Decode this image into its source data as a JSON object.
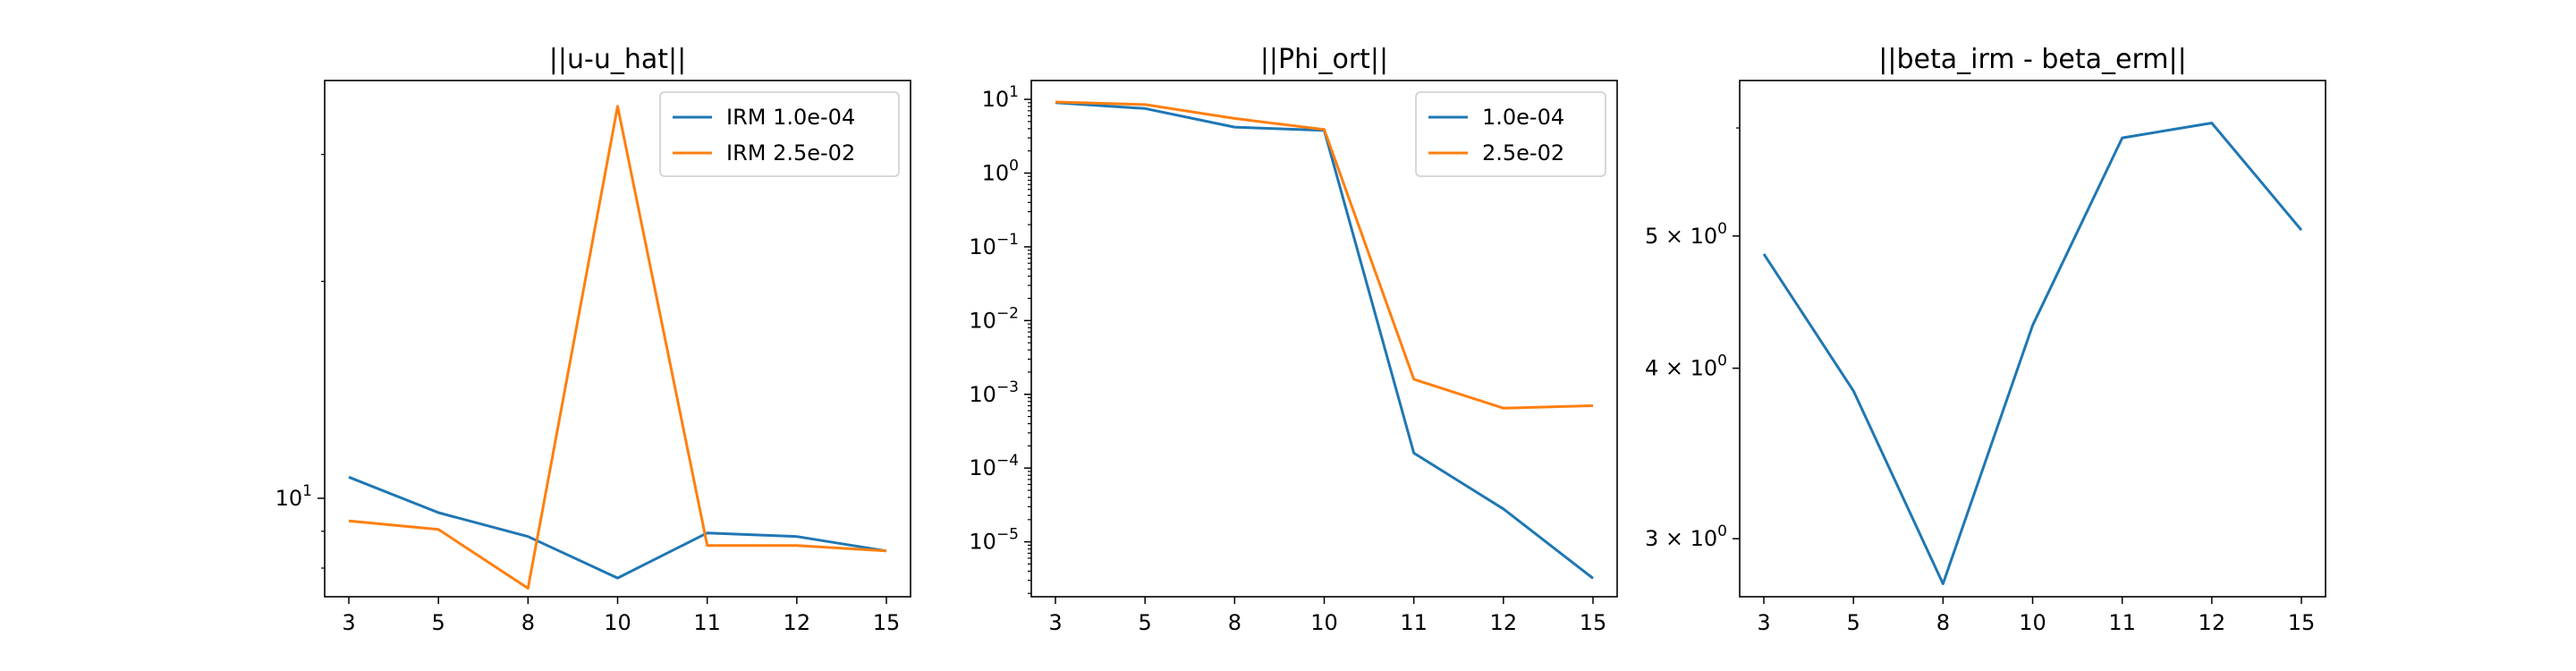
{
  "chart_data": [
    {
      "type": "line",
      "title": "||u-u_hat||",
      "xlabel": "",
      "ylabel": "",
      "categories": [
        "3",
        "5",
        "8",
        "10",
        "11",
        "12",
        "15"
      ],
      "yscale": "log",
      "ylim": [
        7.3,
        38
      ],
      "yticks": [
        {
          "value": 10,
          "base": "10",
          "exp": "1"
        }
      ],
      "legend_position": "upper right",
      "series": [
        {
          "name": "IRM 1.0e-04",
          "color": "#1f77b4",
          "values": [
            10.7,
            9.55,
            8.85,
            7.75,
            8.95,
            8.85,
            8.45
          ]
        },
        {
          "name": "IRM 2.5e-02",
          "color": "#ff7f0e",
          "values": [
            9.3,
            9.05,
            7.5,
            35.0,
            8.6,
            8.6,
            8.45
          ]
        }
      ]
    },
    {
      "type": "line",
      "title": "||Phi_ort||",
      "xlabel": "",
      "ylabel": "",
      "categories": [
        "3",
        "5",
        "8",
        "10",
        "11",
        "12",
        "15"
      ],
      "yscale": "log",
      "ylim": [
        1.8e-06,
        18
      ],
      "yticks": [
        {
          "value": 10,
          "base": "10",
          "exp": "1"
        },
        {
          "value": 1,
          "base": "10",
          "exp": "0"
        },
        {
          "value": 0.1,
          "base": "10",
          "exp": "−1"
        },
        {
          "value": 0.01,
          "base": "10",
          "exp": "−2"
        },
        {
          "value": 0.001,
          "base": "10",
          "exp": "−3"
        },
        {
          "value": 0.0001,
          "base": "10",
          "exp": "−4"
        },
        {
          "value": 1e-05,
          "base": "10",
          "exp": "−5"
        }
      ],
      "legend_position": "upper right",
      "series": [
        {
          "name": "1.0e-04",
          "color": "#1f77b4",
          "values": [
            9.0,
            7.5,
            4.2,
            3.8,
            0.00016,
            2.8e-05,
            3.2e-06
          ]
        },
        {
          "name": "2.5e-02",
          "color": "#ff7f0e",
          "values": [
            9.2,
            8.5,
            5.5,
            3.9,
            0.0016,
            0.00065,
            0.0007
          ]
        }
      ]
    },
    {
      "type": "line",
      "title": "||beta_irm - beta_erm||",
      "xlabel": "",
      "ylabel": "",
      "categories": [
        "3",
        "5",
        "8",
        "10",
        "11",
        "12",
        "15"
      ],
      "yscale": "log",
      "ylim": [
        2.72,
        6.5
      ],
      "yticks": [
        {
          "value": 5,
          "base": "5 × 10",
          "exp": "0"
        },
        {
          "value": 4,
          "base": "4 × 10",
          "exp": "0"
        },
        {
          "value": 3,
          "base": "3 × 10",
          "exp": "0"
        }
      ],
      "legend_position": "none",
      "series": [
        {
          "color": "#1f77b4",
          "values": [
            4.85,
            3.85,
            2.78,
            4.3,
            5.9,
            6.05,
            5.05
          ]
        }
      ]
    }
  ]
}
